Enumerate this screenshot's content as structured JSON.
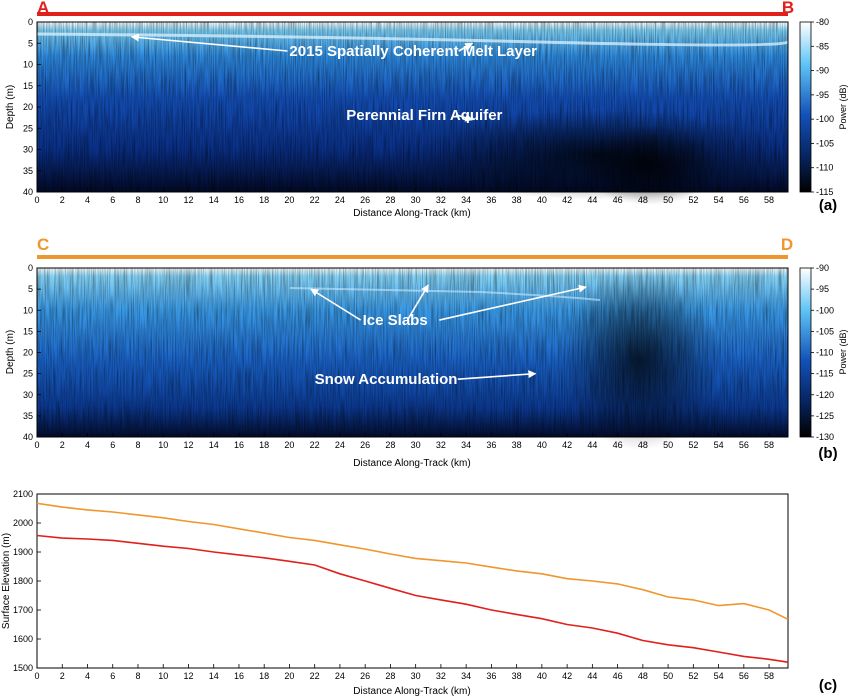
{
  "colors": {
    "track_ab": "#e0201b",
    "track_cd": "#f0962e",
    "radar_dark": "#000000",
    "radar_mid": "#1250b8",
    "radar_light": "#5fc4f5",
    "radar_white": "#ffffff",
    "annotation": "#ffffff"
  },
  "chart_data": [
    {
      "id": "a",
      "type": "heatmap",
      "panel_label": "(a)",
      "endpoints": {
        "start": "A",
        "end": "B",
        "color": "#e0201b"
      },
      "xlabel": "Distance Along-Track (km)",
      "ylabel": "Depth (m)",
      "colorbar_label": "Power (dB)",
      "xlim": [
        0,
        59.5
      ],
      "ylim": [
        40,
        0
      ],
      "xticks": [
        0,
        2,
        4,
        6,
        8,
        10,
        12,
        14,
        16,
        18,
        20,
        22,
        24,
        26,
        28,
        30,
        32,
        34,
        36,
        38,
        40,
        42,
        44,
        46,
        48,
        50,
        52,
        54,
        56,
        58
      ],
      "yticks": [
        0,
        5,
        10,
        15,
        20,
        25,
        30,
        35,
        40
      ],
      "colorbar_range": [
        -115,
        -80
      ],
      "colorbar_ticks": [
        -80,
        -85,
        -90,
        -95,
        -100,
        -105,
        -110,
        -115
      ],
      "annotations": [
        {
          "text": "2015 Spatially Coherent Melt Layer",
          "text_at": [
            20,
            8
          ],
          "arrows_to": [
            [
              7.5,
              3.5
            ],
            [
              34.5,
              5
            ]
          ]
        },
        {
          "text": "Perennial Firn Aquifer",
          "text_at": [
            24.5,
            23
          ],
          "arrows_to": [
            [
              34.5,
              23
            ]
          ]
        }
      ]
    },
    {
      "id": "b",
      "type": "heatmap",
      "panel_label": "(b)",
      "endpoints": {
        "start": "C",
        "end": "D",
        "color": "#f0962e"
      },
      "xlabel": "Distance Along-Track (km)",
      "ylabel": "Depth (m)",
      "colorbar_label": "Power (dB)",
      "xlim": [
        0,
        59.5
      ],
      "ylim": [
        40,
        0
      ],
      "xticks": [
        0,
        2,
        4,
        6,
        8,
        10,
        12,
        14,
        16,
        18,
        20,
        22,
        24,
        26,
        28,
        30,
        32,
        34,
        36,
        38,
        40,
        42,
        44,
        46,
        48,
        50,
        52,
        54,
        56,
        58
      ],
      "yticks": [
        0,
        5,
        10,
        15,
        20,
        25,
        30,
        35,
        40
      ],
      "colorbar_range": [
        -130,
        -90
      ],
      "colorbar_ticks": [
        -90,
        -95,
        -100,
        -105,
        -110,
        -115,
        -120,
        -125,
        -130
      ],
      "annotations": [
        {
          "text": "Ice Slabs",
          "text_at": [
            25.8,
            13.5
          ],
          "arrows_to": [
            [
              21.7,
              5
            ],
            [
              31,
              4
            ],
            [
              43.5,
              4.5
            ]
          ]
        },
        {
          "text": "Snow Accumulation",
          "text_at": [
            22,
            27.5
          ],
          "arrows_to": [
            [
              39.5,
              25
            ]
          ]
        }
      ]
    },
    {
      "id": "c",
      "type": "line",
      "panel_label": "(c)",
      "xlabel": "Distance Along-Track (km)",
      "ylabel": "Surface Elevation (m)",
      "xlim": [
        0,
        59.5
      ],
      "ylim": [
        1500,
        2100
      ],
      "xticks": [
        0,
        2,
        4,
        6,
        8,
        10,
        12,
        14,
        16,
        18,
        20,
        22,
        24,
        26,
        28,
        30,
        32,
        34,
        36,
        38,
        40,
        42,
        44,
        46,
        48,
        50,
        52,
        54,
        56,
        58
      ],
      "yticks": [
        1500,
        1600,
        1700,
        1800,
        1900,
        2000,
        2100
      ],
      "x": [
        0,
        2,
        4,
        6,
        8,
        10,
        12,
        14,
        16,
        18,
        20,
        22,
        24,
        26,
        28,
        30,
        32,
        34,
        36,
        38,
        40,
        42,
        44,
        46,
        48,
        50,
        52,
        54,
        56,
        58,
        59.5
      ],
      "series": [
        {
          "color": "#f0962e",
          "values": [
            2068,
            2055,
            2045,
            2038,
            2028,
            2018,
            2005,
            1995,
            1980,
            1965,
            1950,
            1940,
            1925,
            1910,
            1893,
            1878,
            1870,
            1862,
            1848,
            1835,
            1825,
            1808,
            1800,
            1790,
            1770,
            1745,
            1735,
            1715,
            1722,
            1700,
            1668
          ]
        },
        {
          "color": "#e0201b",
          "values": [
            1957,
            1948,
            1945,
            1940,
            1930,
            1920,
            1912,
            1900,
            1890,
            1880,
            1868,
            1855,
            1825,
            1800,
            1775,
            1750,
            1735,
            1720,
            1700,
            1685,
            1670,
            1650,
            1638,
            1620,
            1595,
            1580,
            1570,
            1555,
            1540,
            1530,
            1520
          ]
        }
      ]
    }
  ]
}
